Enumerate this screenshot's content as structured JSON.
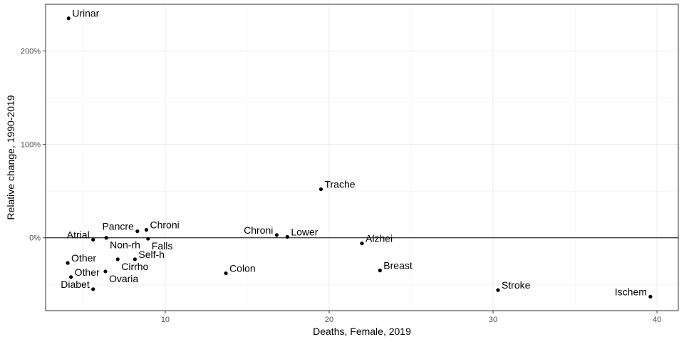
{
  "chart_data": {
    "type": "scatter",
    "title": "",
    "xlabel": "Deaths, Female, 2019",
    "ylabel": "Relative change, 1990-2019",
    "xlim": [
      2.7,
      41.3
    ],
    "ylim": [
      -0.78,
      2.5
    ],
    "x_ticks": [
      10,
      20,
      30,
      40
    ],
    "x_tick_labels": [
      "10",
      "20",
      "30",
      "40"
    ],
    "y_ticks": [
      0,
      1,
      2
    ],
    "y_tick_labels": [
      "0%",
      "100%",
      "200%"
    ],
    "grid": true,
    "legend": "none",
    "reference_line_y": 0,
    "points": [
      {
        "label": "Urinar",
        "x": 4.1,
        "y": 2.35
      },
      {
        "label": "Trache",
        "x": 19.5,
        "y": 0.52
      },
      {
        "label": "Pancre",
        "x": 8.3,
        "y": 0.07
      },
      {
        "label": "Chroni",
        "x": 8.85,
        "y": 0.085
      },
      {
        "label": "Non-rh",
        "x": 6.4,
        "y": 0.0
      },
      {
        "label": "Atrial",
        "x": 5.6,
        "y": -0.02
      },
      {
        "label": "Falls",
        "x": 8.95,
        "y": -0.01
      },
      {
        "label": "Chroni",
        "x": 16.8,
        "y": 0.03
      },
      {
        "label": "Lower",
        "x": 17.45,
        "y": 0.01
      },
      {
        "label": "Alzhei",
        "x": 22.0,
        "y": -0.06
      },
      {
        "label": "Other",
        "x": 4.05,
        "y": -0.27
      },
      {
        "label": "Other",
        "x": 4.25,
        "y": -0.42
      },
      {
        "label": "Cirrho",
        "x": 7.1,
        "y": -0.23
      },
      {
        "label": "Self-h",
        "x": 8.15,
        "y": -0.23
      },
      {
        "label": "Ovaria",
        "x": 6.35,
        "y": -0.36
      },
      {
        "label": "Diabet",
        "x": 5.6,
        "y": -0.55
      },
      {
        "label": "Colon",
        "x": 13.7,
        "y": -0.38
      },
      {
        "label": "Breast",
        "x": 23.1,
        "y": -0.35
      },
      {
        "label": "Stroke",
        "x": 30.3,
        "y": -0.56
      },
      {
        "label": "Ischem",
        "x": 39.6,
        "y": -0.63
      }
    ]
  }
}
